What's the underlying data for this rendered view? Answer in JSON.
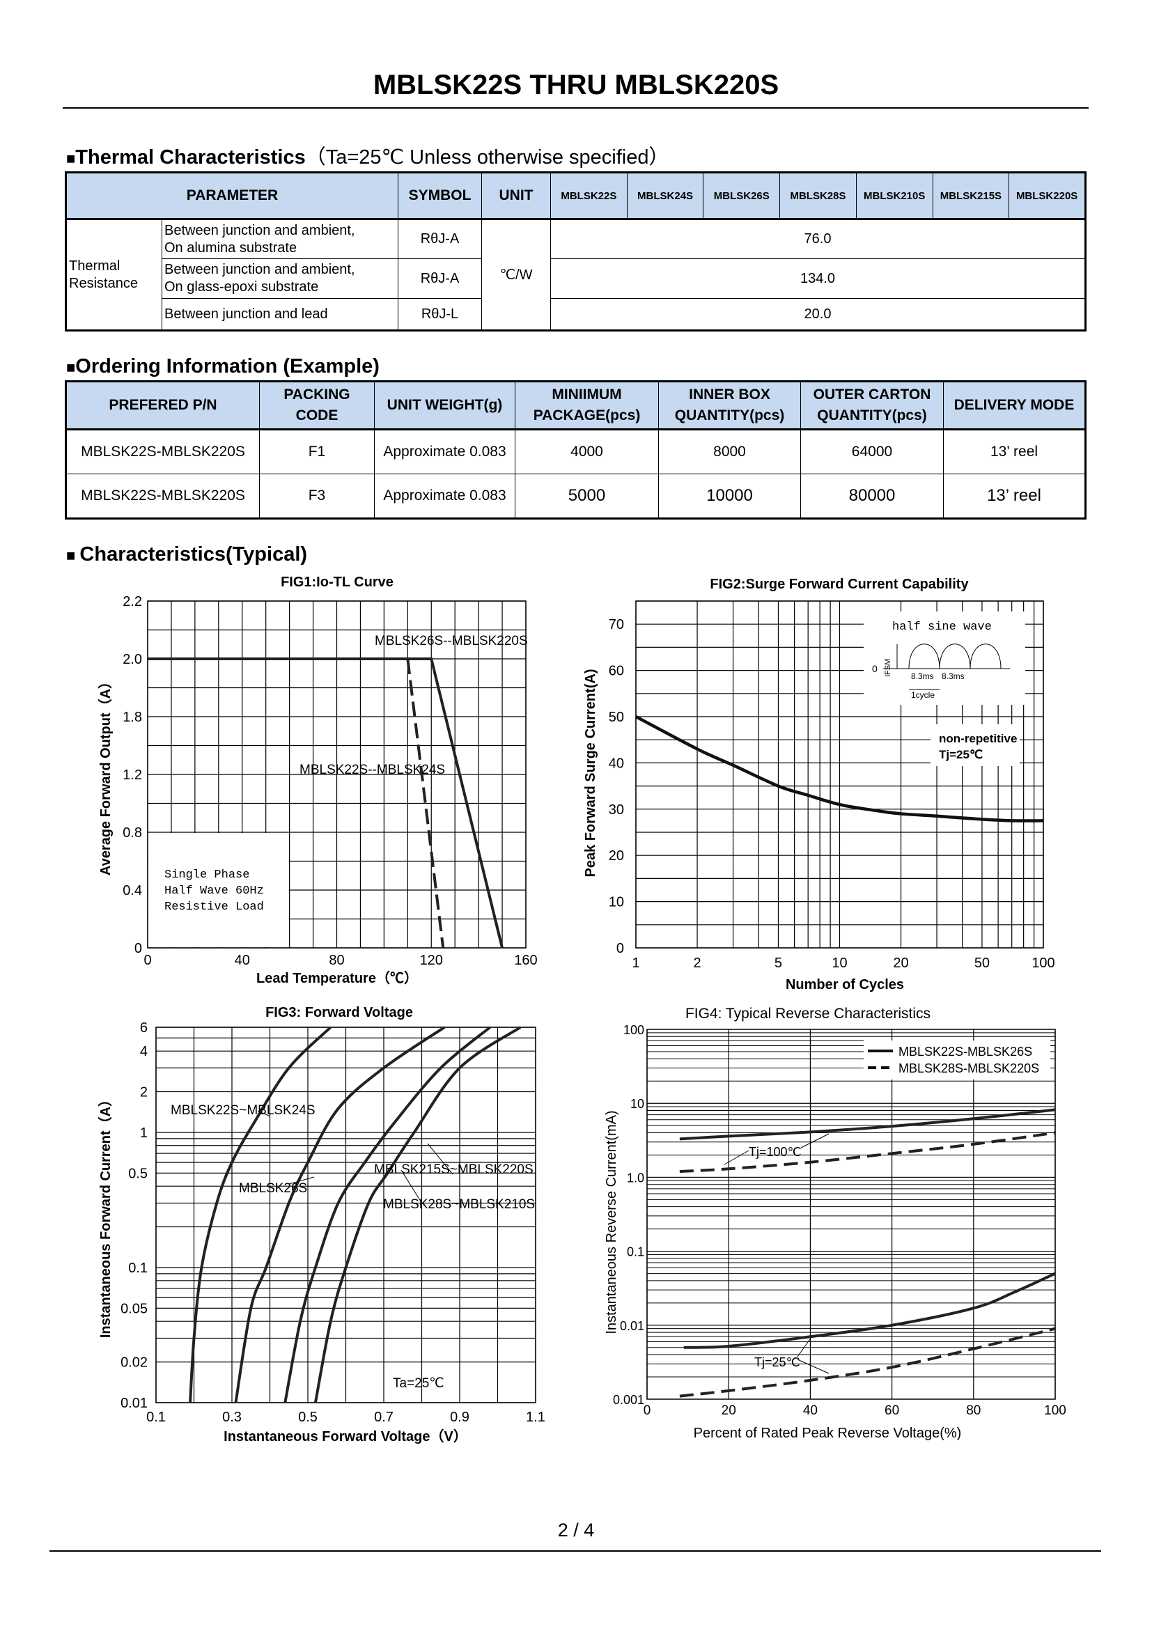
{
  "title": "MBLSK22S THRU MBLSK220S",
  "thermal": {
    "heading": "Thermal Characteristics",
    "condition": "（Ta=25℃ Unless otherwise specified）",
    "headers": {
      "parameter": "PARAMETER",
      "symbol": "SYMBOL",
      "unit": "UNIT"
    },
    "models": [
      "MBLSK22S",
      "MBLSK24S",
      "MBLSK26S",
      "MBLSK28S",
      "MBLSK210S",
      "MBLSK215S",
      "MBLSK220S"
    ],
    "group_label": "Thermal Resistance",
    "unit": "℃/W",
    "rows": [
      {
        "line1": "Between junction and ambient,",
        "line2": "On alumina substrate",
        "symbol": "RθJ-A",
        "value": "76.0"
      },
      {
        "line1": "Between junction and ambient,",
        "line2": "On glass-epoxi substrate",
        "symbol": "RθJ-A",
        "value": "134.0"
      },
      {
        "line1": "Between junction and lead",
        "line2": "",
        "symbol": "RθJ-L",
        "value": "20.0"
      }
    ]
  },
  "ordering": {
    "heading": "Ordering Information (Example)",
    "headers": [
      [
        "PREFERED P/N",
        ""
      ],
      [
        "PACKING",
        "CODE"
      ],
      [
        "UNIT WEIGHT(g)",
        ""
      ],
      [
        "MINIIMUM",
        "PACKAGE(pcs)"
      ],
      [
        "INNER BOX",
        "QUANTITY(pcs)"
      ],
      [
        "OUTER CARTON",
        "QUANTITY(pcs)"
      ],
      [
        "DELIVERY MODE",
        ""
      ]
    ],
    "rows": [
      [
        "MBLSK22S-MBLSK220S",
        "F1",
        "Approximate 0.083",
        "4000",
        "8000",
        "64000",
        "13’ reel"
      ],
      [
        "MBLSK22S-MBLSK220S",
        "F3",
        "Approximate 0.083",
        "5000",
        "10000",
        "80000",
        "13’ reel"
      ]
    ]
  },
  "characteristics_heading": "Characteristics(Typical)",
  "page_number": "2 / 4",
  "chart_data": [
    {
      "type": "line",
      "title": "FIG1:Io-TL Curve",
      "xlabel": "Lead Temperature（℃）",
      "ylabel": "Average Forward Output（A）",
      "xlim": [
        0,
        160
      ],
      "xticks": [
        "0",
        "40",
        "80",
        "120",
        "160"
      ],
      "yticks": [
        "0",
        "0.4",
        "0.8",
        "1.2",
        "1.8",
        "2.0",
        "2.2"
      ],
      "grid": true,
      "series": [
        {
          "name": "MBLSK26S--MBLSK220S",
          "style": "solid",
          "points": [
            [
              0,
              2.0
            ],
            [
              120,
              2.0
            ],
            [
              150,
              0
            ]
          ]
        },
        {
          "name": "MBLSK22S--MBLSK24S",
          "style": "dashed",
          "points": [
            [
              110,
              2.0
            ],
            [
              125,
              0
            ]
          ]
        }
      ],
      "note": [
        "Single Phase",
        "Half Wave 60Hz",
        "Resistive Load"
      ]
    },
    {
      "type": "line",
      "title": "FIG2:Surge Forward Current Capability",
      "xlabel": "Number of Cycles",
      "ylabel": "Peak Forward Surge Current(A)",
      "xscale": "log",
      "xlim": [
        1,
        100
      ],
      "ylim": [
        0,
        75
      ],
      "xticks": [
        "1",
        "2",
        "5",
        "10",
        "20",
        "50",
        "100"
      ],
      "yticks": [
        "0",
        "10",
        "20",
        "30",
        "40",
        "50",
        "60",
        "70"
      ],
      "grid": true,
      "series": [
        {
          "points": [
            [
              1,
              50
            ],
            [
              2,
              43
            ],
            [
              3,
              39.5
            ],
            [
              5,
              35
            ],
            [
              7,
              33
            ],
            [
              10,
              31
            ],
            [
              15,
              29.7
            ],
            [
              20,
              29
            ],
            [
              30,
              28.5
            ],
            [
              50,
              27.8
            ],
            [
              70,
              27.5
            ],
            [
              100,
              27.5
            ]
          ]
        }
      ],
      "inset": {
        "title": "half sine wave",
        "ylabel": "IFSM",
        "zero": "0",
        "period1": "8.3ms",
        "period2": "8.3ms",
        "cycle": "1cycle"
      },
      "annotation": [
        "non-repetitive",
        "Tj=25℃"
      ]
    },
    {
      "type": "line",
      "title": "FIG3: Forward Voltage",
      "xlabel": "Instantaneous Forward Voltage（V）",
      "ylabel": "Instantaneous Forward Current（A）",
      "yscale": "log",
      "xlim": [
        0.1,
        1.1
      ],
      "ylim": [
        0.01,
        6
      ],
      "xticks": [
        "0.1",
        "0.3",
        "0.5",
        "0.7",
        "0.9",
        "1.1"
      ],
      "yticks": [
        "0.01",
        "0.02",
        "0.05",
        "0.1",
        "0.5",
        "1",
        "2",
        "4",
        "6"
      ],
      "grid": true,
      "series": [
        {
          "name": "MBLSK22S~MBLSK24S",
          "points": [
            [
              0.19,
              0.01
            ],
            [
              0.2,
              0.03
            ],
            [
              0.22,
              0.1
            ],
            [
              0.26,
              0.3
            ],
            [
              0.3,
              0.6
            ],
            [
              0.36,
              1.2
            ],
            [
              0.45,
              3
            ],
            [
              0.56,
              6
            ]
          ]
        },
        {
          "name": "MBLSK26S",
          "points": [
            [
              0.31,
              0.01
            ],
            [
              0.35,
              0.05
            ],
            [
              0.39,
              0.1
            ],
            [
              0.45,
              0.3
            ],
            [
              0.5,
              0.6
            ],
            [
              0.58,
              1.5
            ],
            [
              0.7,
              3
            ],
            [
              0.86,
              6
            ]
          ]
        },
        {
          "name": "MBLSK28S~MBLSK210S",
          "points": [
            [
              0.44,
              0.01
            ],
            [
              0.48,
              0.04
            ],
            [
              0.52,
              0.1
            ],
            [
              0.58,
              0.3
            ],
            [
              0.65,
              0.6
            ],
            [
              0.73,
              1.2
            ],
            [
              0.85,
              3
            ],
            [
              0.98,
              6
            ]
          ]
        },
        {
          "name": "MBLSK215S~MBLSK220S",
          "points": [
            [
              0.52,
              0.01
            ],
            [
              0.56,
              0.04
            ],
            [
              0.6,
              0.1
            ],
            [
              0.66,
              0.3
            ],
            [
              0.71,
              0.5
            ],
            [
              0.78,
              1
            ],
            [
              0.9,
              3
            ],
            [
              1.06,
              6
            ]
          ]
        }
      ],
      "annotation": "Ta=25℃"
    },
    {
      "type": "line",
      "title": "FIG4:  Typical Reverse Characteristics",
      "xlabel": "Percent of Rated Peak Reverse Voltage(%)",
      "ylabel": "Instantaneous Reverse Current(mA)",
      "yscale": "log",
      "xlim": [
        0,
        100
      ],
      "ylim": [
        0.001,
        100
      ],
      "xticks": [
        "0",
        "20",
        "40",
        "60",
        "80",
        "100"
      ],
      "yticks": [
        "0.001",
        "0.01",
        "0.1",
        "1.0",
        "10",
        "100"
      ],
      "grid": true,
      "legend": {
        "placement": "top-right",
        "entries": [
          {
            "name": "MBLSK22S-MBLSK26S",
            "style": "solid"
          },
          {
            "name": "MBLSK28S-MBLSK220S",
            "style": "dashed"
          }
        ]
      },
      "series": [
        {
          "name": "MBLSK22S-MBLSK26S",
          "condition": "Tj=100℃",
          "style": "solid",
          "points": [
            [
              8,
              3.3
            ],
            [
              20,
              3.6
            ],
            [
              40,
              4.1
            ],
            [
              60,
              4.9
            ],
            [
              80,
              6.2
            ],
            [
              100,
              8.2
            ]
          ]
        },
        {
          "name": "MBLSK28S-MBLSK220S",
          "condition": "Tj=100℃",
          "style": "dashed",
          "points": [
            [
              8,
              1.2
            ],
            [
              20,
              1.3
            ],
            [
              40,
              1.6
            ],
            [
              60,
              2.1
            ],
            [
              80,
              2.8
            ],
            [
              100,
              4.0
            ]
          ]
        },
        {
          "name": "MBLSK22S-MBLSK26S",
          "condition": "Tj=25℃",
          "style": "solid",
          "points": [
            [
              9,
              0.005
            ],
            [
              20,
              0.0052
            ],
            [
              40,
              0.007
            ],
            [
              60,
              0.01
            ],
            [
              80,
              0.017
            ],
            [
              90,
              0.028
            ],
            [
              100,
              0.05
            ]
          ]
        },
        {
          "name": "MBLSK28S-MBLSK220S",
          "condition": "Tj=25℃",
          "style": "dashed",
          "points": [
            [
              8,
              0.0011
            ],
            [
              20,
              0.0013
            ],
            [
              40,
              0.0018
            ],
            [
              60,
              0.0027
            ],
            [
              80,
              0.0048
            ],
            [
              100,
              0.009
            ]
          ]
        }
      ],
      "annotations": [
        "Tj=100℃",
        "Tj=25℃"
      ]
    }
  ]
}
